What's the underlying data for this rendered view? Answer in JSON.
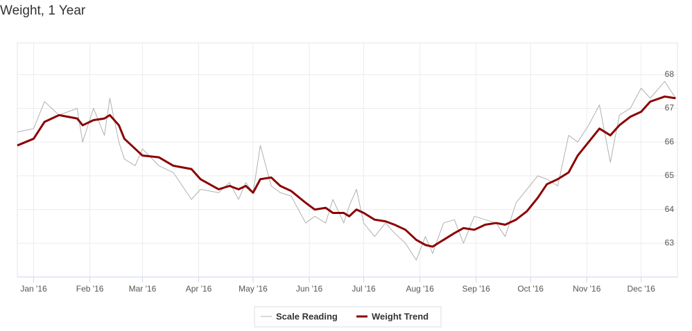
{
  "chart_data": {
    "type": "line",
    "title": "Weight, 1 Year",
    "x": [
      -8,
      1,
      7,
      15,
      25,
      28,
      34,
      40,
      43,
      48,
      51,
      57,
      61,
      70,
      78,
      88,
      93,
      103,
      109,
      114,
      118,
      122,
      126,
      132,
      137,
      143,
      151,
      156,
      162,
      166,
      172,
      175,
      179,
      183,
      189,
      195,
      200,
      206,
      212,
      217,
      221,
      227,
      233,
      238,
      244,
      250,
      256,
      261,
      267,
      273,
      279,
      284,
      290,
      296,
      301,
      307,
      313,
      319,
      324,
      330,
      336,
      341,
      349,
      355
    ],
    "series": [
      {
        "name": "Scale Reading",
        "color": "#b0b0b0",
        "values": [
          66.3,
          66.4,
          67.2,
          66.8,
          67.0,
          66.0,
          67.0,
          66.2,
          67.3,
          66.0,
          65.5,
          65.3,
          65.8,
          65.3,
          65.1,
          64.3,
          64.6,
          64.5,
          64.8,
          64.3,
          64.8,
          64.5,
          65.9,
          64.7,
          64.5,
          64.4,
          63.6,
          63.8,
          63.6,
          64.3,
          63.6,
          64.1,
          64.6,
          63.6,
          63.2,
          63.6,
          63.3,
          63.0,
          62.5,
          63.2,
          62.7,
          63.6,
          63.7,
          63.0,
          63.8,
          63.7,
          63.6,
          63.2,
          64.2,
          64.6,
          65.0,
          64.9,
          64.7,
          66.2,
          66.0,
          66.5,
          67.1,
          65.4,
          66.8,
          67.0,
          67.6,
          67.3,
          67.8,
          67.3
        ]
      },
      {
        "name": "Weight Trend",
        "color": "#8b0000",
        "values": [
          65.9,
          66.1,
          66.6,
          66.8,
          66.7,
          66.5,
          66.65,
          66.7,
          66.8,
          66.5,
          66.1,
          65.8,
          65.6,
          65.55,
          65.3,
          65.2,
          64.9,
          64.6,
          64.7,
          64.6,
          64.7,
          64.5,
          64.9,
          64.95,
          64.7,
          64.55,
          64.2,
          64.0,
          64.05,
          63.9,
          63.9,
          63.8,
          64.0,
          63.9,
          63.7,
          63.65,
          63.55,
          63.4,
          63.1,
          62.95,
          62.9,
          63.1,
          63.3,
          63.45,
          63.4,
          63.55,
          63.6,
          63.55,
          63.7,
          63.95,
          64.35,
          64.75,
          64.9,
          65.1,
          65.6,
          66.0,
          66.4,
          66.2,
          66.5,
          66.75,
          66.9,
          67.2,
          67.35,
          67.3
        ]
      }
    ],
    "xlim": [
      -8,
      356
    ],
    "xticks": [
      {
        "value": 1,
        "label": "Jan '16"
      },
      {
        "value": 32,
        "label": "Feb '16"
      },
      {
        "value": 61,
        "label": "Mar '16"
      },
      {
        "value": 92,
        "label": "Apr '16"
      },
      {
        "value": 122,
        "label": "May '16"
      },
      {
        "value": 153,
        "label": "Jun '16"
      },
      {
        "value": 183,
        "label": "Jul '16"
      },
      {
        "value": 214,
        "label": "Aug '16"
      },
      {
        "value": 245,
        "label": "Sep '16"
      },
      {
        "value": 275,
        "label": "Oct '16"
      },
      {
        "value": 306,
        "label": "Nov '16"
      },
      {
        "value": 336,
        "label": "Dec '16"
      }
    ],
    "ylim": [
      62,
      68.94
    ],
    "yticks": [
      63,
      64,
      65,
      66,
      67,
      68
    ],
    "grid": true
  }
}
